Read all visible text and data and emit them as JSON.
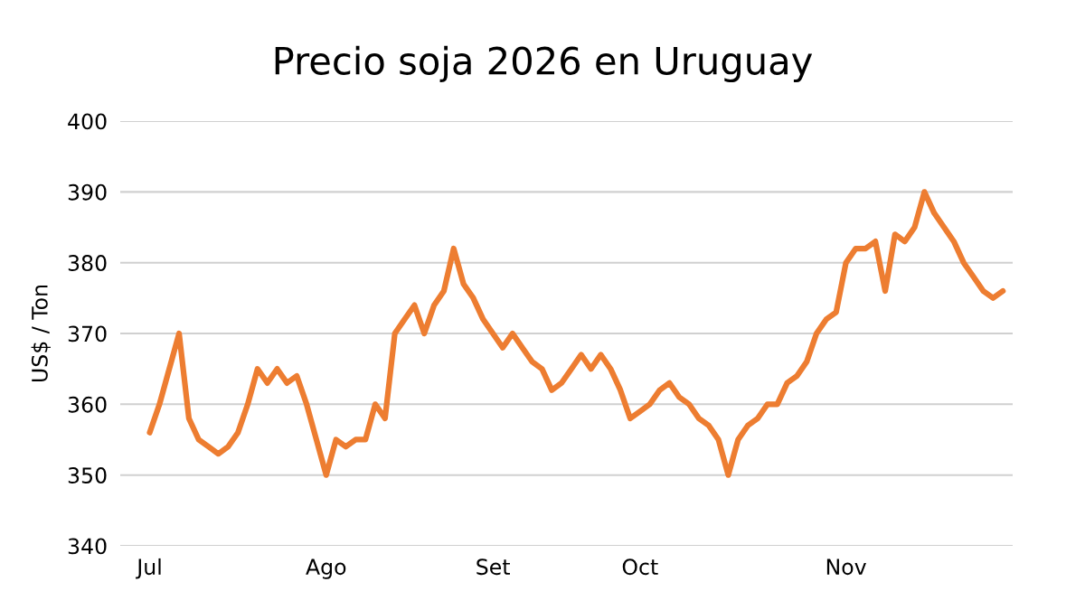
{
  "chart_data": {
    "type": "line",
    "title": "Precio soja 2026 en Uruguay",
    "ylabel": "US$ / Ton",
    "categories": [
      "Jul",
      null,
      null,
      null,
      null,
      null,
      null,
      null,
      null,
      null,
      null,
      null,
      null,
      null,
      null,
      null,
      null,
      null,
      "Ago",
      null,
      null,
      null,
      null,
      null,
      null,
      null,
      null,
      null,
      null,
      null,
      null,
      null,
      null,
      null,
      null,
      "Set",
      null,
      null,
      null,
      null,
      null,
      null,
      null,
      null,
      null,
      null,
      null,
      null,
      null,
      null,
      "Oct",
      null,
      null,
      null,
      null,
      null,
      null,
      null,
      null,
      null,
      null,
      null,
      null,
      null,
      null,
      null,
      null,
      null,
      null,
      null,
      null,
      "Nov",
      null,
      null,
      null,
      null,
      null,
      null,
      null,
      null,
      null,
      null,
      null,
      null,
      null,
      null,
      null,
      null
    ],
    "series": [
      {
        "color": "#ed7d31",
        "values": [
          356,
          360,
          365,
          370,
          358,
          355,
          354,
          353,
          354,
          356,
          360,
          365,
          363,
          365,
          363,
          364,
          360,
          355,
          350,
          355,
          354,
          355,
          355,
          360,
          358,
          370,
          372,
          374,
          370,
          374,
          376,
          382,
          377,
          375,
          372,
          370,
          368,
          370,
          368,
          366,
          365,
          362,
          363,
          365,
          367,
          365,
          367,
          365,
          362,
          358,
          359,
          360,
          362,
          363,
          361,
          360,
          358,
          357,
          355,
          350,
          355,
          357,
          358,
          360,
          360,
          363,
          364,
          366,
          370,
          372,
          373,
          380,
          382,
          382,
          383,
          376,
          384,
          383,
          385,
          390,
          387,
          385,
          383,
          380,
          378,
          376,
          375,
          376
        ]
      }
    ],
    "ylim": [
      340,
      400
    ],
    "yticks": [
      340,
      350,
      360,
      370,
      380,
      390,
      400
    ],
    "grid": "y",
    "legend": false,
    "marker": "none",
    "line_style": "solid"
  }
}
